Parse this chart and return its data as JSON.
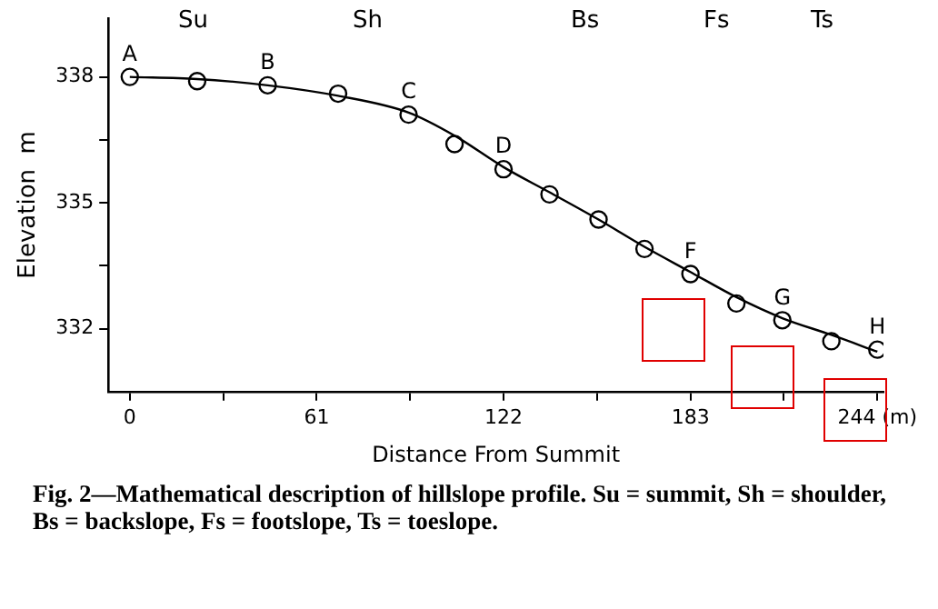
{
  "chart_data": {
    "type": "scatter",
    "xlabel": "Distance From Summit",
    "ylabel": "Elevation  m",
    "xlim": [
      -7,
      246
    ],
    "ylim": [
      330.5,
      339.4
    ],
    "xticks": [
      0,
      {
        "value": 30.5,
        "label": null
      },
      61,
      {
        "value": 91.5,
        "label": null
      },
      122,
      {
        "value": 152.5,
        "label": null
      },
      183,
      {
        "value": 213.5,
        "label": null
      },
      {
        "value": 244,
        "label": "244 (m)"
      }
    ],
    "yticks": [
      332,
      {
        "value": 333.5,
        "label": null
      },
      335,
      {
        "value": 336.5,
        "label": null
      },
      338
    ],
    "grid": false,
    "legend": false,
    "series": [
      {
        "color": "#000000",
        "marker": "circle",
        "x": [
          0,
          22,
          45,
          68,
          91,
          106,
          122,
          137,
          153,
          168,
          183,
          198,
          213,
          229,
          244
        ],
        "values": [
          338.0,
          337.9,
          337.8,
          337.6,
          337.1,
          336.4,
          335.8,
          335.2,
          334.6,
          333.9,
          333.3,
          332.6,
          332.2,
          331.7,
          331.5
        ],
        "value_labels": [
          "A",
          null,
          "B",
          null,
          "C",
          null,
          "D",
          null,
          null,
          null,
          "F",
          null,
          "G",
          null,
          "H"
        ]
      },
      {
        "type": "line",
        "color": "#000000",
        "marker": "none",
        "line_style": "solid",
        "x": [
          0,
          22,
          45,
          68,
          91,
          106,
          122,
          137,
          153,
          168,
          183,
          198,
          213,
          229,
          244
        ],
        "values": [
          338.0,
          337.95,
          337.8,
          337.55,
          337.15,
          336.6,
          335.85,
          335.25,
          334.6,
          333.95,
          333.35,
          332.75,
          332.25,
          331.85,
          331.45
        ]
      }
    ],
    "annotations": [
      "Fig. 2—Mathematical description of hillslope profile. Su = summit, Sh = shoulder, Bs = backslope, Fs = footslope, Ts = toeslope.",
      "Su",
      "Sh",
      "Bs",
      "Fs",
      "Ts"
    ]
  }
}
